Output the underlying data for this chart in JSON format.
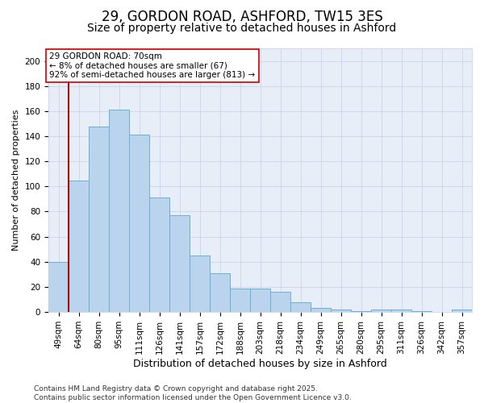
{
  "title1": "29, GORDON ROAD, ASHFORD, TW15 3ES",
  "title2": "Size of property relative to detached houses in Ashford",
  "xlabel": "Distribution of detached houses by size in Ashford",
  "ylabel": "Number of detached properties",
  "categories": [
    "49sqm",
    "64sqm",
    "80sqm",
    "95sqm",
    "111sqm",
    "126sqm",
    "141sqm",
    "157sqm",
    "172sqm",
    "188sqm",
    "203sqm",
    "218sqm",
    "234sqm",
    "249sqm",
    "265sqm",
    "280sqm",
    "295sqm",
    "311sqm",
    "326sqm",
    "342sqm",
    "357sqm"
  ],
  "values": [
    40,
    105,
    148,
    161,
    141,
    91,
    77,
    45,
    31,
    19,
    19,
    16,
    8,
    3,
    2,
    1,
    2,
    2,
    1,
    0,
    2
  ],
  "bar_color": "#bad4ed",
  "bar_edge_color": "#6baed6",
  "red_line_x": 0.5,
  "red_line_color": "#aa0000",
  "annotation_text": "29 GORDON ROAD: 70sqm\n← 8% of detached houses are smaller (67)\n92% of semi-detached houses are larger (813) →",
  "annotation_box_color": "#ffffff",
  "annotation_box_edge": "#cc0000",
  "ylim": [
    0,
    210
  ],
  "yticks": [
    0,
    20,
    40,
    60,
    80,
    100,
    120,
    140,
    160,
    180,
    200
  ],
  "grid_color": "#c8d4e8",
  "background_color": "#e8eef8",
  "footer": "Contains HM Land Registry data © Crown copyright and database right 2025.\nContains public sector information licensed under the Open Government Licence v3.0.",
  "title1_fontsize": 12,
  "title2_fontsize": 10,
  "xlabel_fontsize": 9,
  "ylabel_fontsize": 8,
  "tick_fontsize": 7.5,
  "footer_fontsize": 6.5,
  "ann_fontsize": 7.5
}
